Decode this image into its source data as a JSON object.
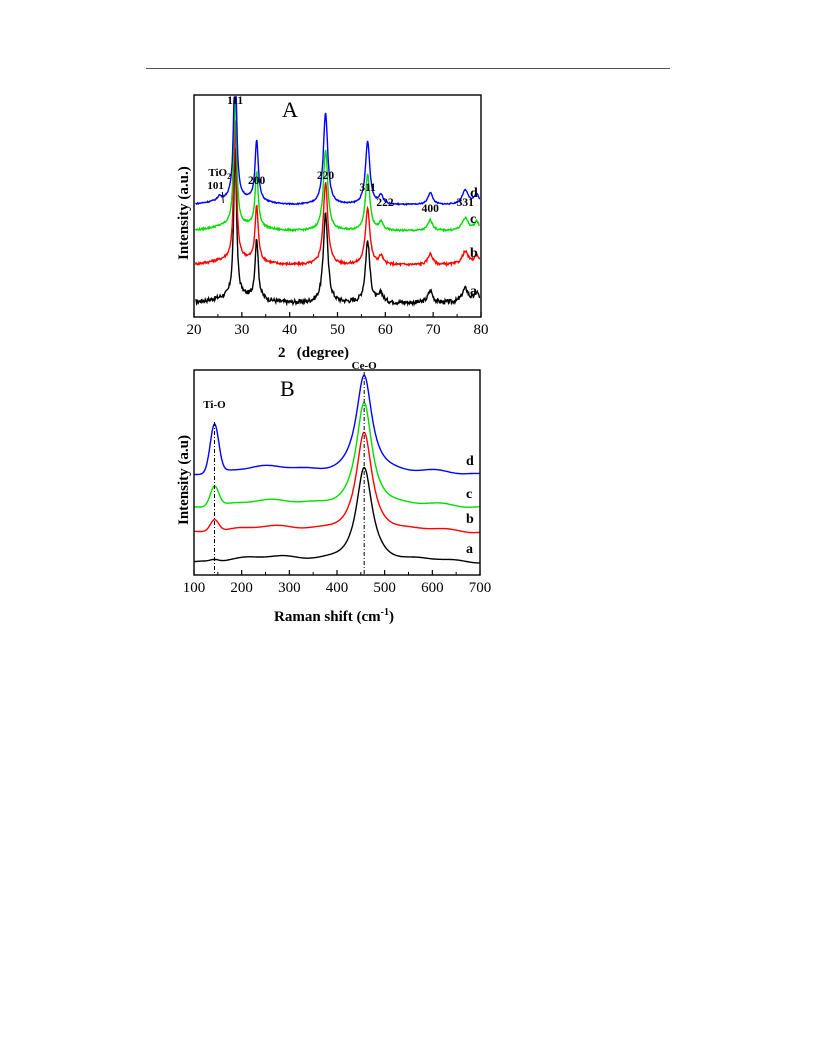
{
  "chart_data": [
    {
      "type": "line",
      "panel": "A",
      "xlabel": "2   (degree)",
      "ylabel": "Intensity (a.u.)",
      "xlim": [
        20,
        80
      ],
      "xticks": [
        "20",
        "30",
        "40",
        "50",
        "60",
        "70",
        "80"
      ],
      "xtick_values": [
        20,
        30,
        40,
        50,
        60,
        70,
        80
      ],
      "peak_labels": [
        {
          "text": "111",
          "x": 28.6
        },
        {
          "text": "200",
          "x": 33.1
        },
        {
          "text": "220",
          "x": 47.5
        },
        {
          "text": "311",
          "x": 56.3
        },
        {
          "text": "222",
          "x": 59.1
        },
        {
          "text": "400",
          "x": 69.4
        },
        {
          "text": "331",
          "x": 76.7
        }
      ],
      "tio2_label": {
        "text": "TiO",
        "sub": "2",
        "hkl": "101",
        "x": 25.3
      },
      "peaks": [
        {
          "c": 28.6,
          "w": 0.35,
          "h": 150
        },
        {
          "c": 33.1,
          "w": 0.4,
          "h": 60
        },
        {
          "c": 47.5,
          "w": 0.55,
          "h": 90
        },
        {
          "c": 56.3,
          "w": 0.55,
          "h": 62
        },
        {
          "c": 59.1,
          "w": 0.5,
          "h": 9
        },
        {
          "c": 69.4,
          "w": 0.6,
          "h": 12
        },
        {
          "c": 76.7,
          "w": 0.8,
          "h": 14
        },
        {
          "c": 79.1,
          "w": 0.6,
          "h": 10
        }
      ],
      "series": [
        {
          "name": "a",
          "color": "#000000",
          "offset": 0,
          "scale": 1.0,
          "noise": 2.2,
          "tio2": 0
        },
        {
          "name": "b",
          "color": "#ff0000",
          "offset": 38,
          "scale": 0.92,
          "noise": 1.2,
          "tio2": 0
        },
        {
          "name": "c",
          "color": "#00dd00",
          "offset": 72,
          "scale": 0.9,
          "noise": 0.9,
          "tio2": 0
        },
        {
          "name": "d",
          "color": "#0000ff",
          "offset": 98,
          "scale": 1.02,
          "noise": 0.6,
          "tio2": 4
        }
      ]
    },
    {
      "type": "line",
      "panel": "B",
      "xlabel": "Raman shift (cm",
      "xlabel_sup": "-1",
      "xlabel_end": ")",
      "ylabel": "Intensity (a.u)",
      "xlim": [
        100,
        700
      ],
      "xticks": [
        "100",
        "200",
        "300",
        "400",
        "500",
        "600",
        "700"
      ],
      "xtick_values": [
        100,
        200,
        300,
        400,
        500,
        600,
        700
      ],
      "annotations": [
        {
          "text": "Ti-O",
          "x": 143
        },
        {
          "text": "Ce-O",
          "x": 457
        }
      ],
      "series": [
        {
          "name": "a",
          "color": "#000000",
          "offset": 0,
          "ce": 95,
          "ti": 2,
          "bg": 6
        },
        {
          "name": "b",
          "color": "#ff0000",
          "offset": 30,
          "ce": 100,
          "ti": 12,
          "bg": 6
        },
        {
          "name": "c",
          "color": "#00dd00",
          "offset": 55,
          "ce": 105,
          "ti": 20,
          "bg": 7
        },
        {
          "name": "d",
          "color": "#0000ff",
          "offset": 88,
          "ce": 100,
          "ti": 48,
          "bg": 8
        }
      ]
    }
  ]
}
